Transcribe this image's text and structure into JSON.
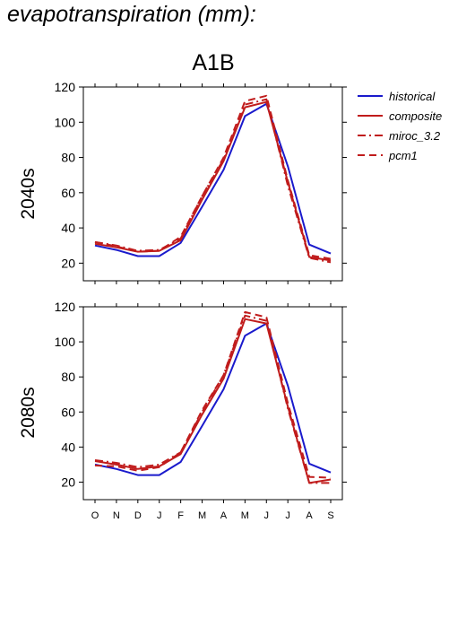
{
  "title": "evapotranspiration (mm):",
  "chart_data": {
    "type": "line",
    "scenario": "A1B",
    "x_tick_labels": [
      "O",
      "N",
      "D",
      "J",
      "F",
      "M",
      "A",
      "M",
      "J",
      "J",
      "A",
      "S"
    ],
    "y_ticks": [
      20,
      40,
      60,
      80,
      100,
      120
    ],
    "ylim": [
      10,
      120
    ],
    "legend_position": "right",
    "colors": {
      "historical": "#1a1acc",
      "scenarios": "#c01c1c"
    },
    "legend": [
      {
        "name": "historical",
        "style": "solid-blue"
      },
      {
        "name": "composite",
        "style": "solid-red"
      },
      {
        "name": "miroc_3.2",
        "style": "dash-dot-red"
      },
      {
        "name": "pcm1",
        "style": "dashed-red"
      }
    ],
    "panels": [
      {
        "label": "2040s",
        "series": [
          {
            "name": "historical",
            "values": [
              30,
              27.5,
              24,
              24,
              31.5,
              52,
              73,
              103.5,
              110.5,
              75,
              30.5,
              25.5
            ]
          },
          {
            "name": "composite",
            "values": [
              31,
              29,
              26.5,
              27,
              33,
              56,
              78,
              108.5,
              111.5,
              66,
              23.5,
              21.5
            ]
          },
          {
            "name": "miroc_3.2",
            "values": [
              32,
              30,
              27,
              27.5,
              34,
              58,
              79,
              110,
              113,
              64,
              23,
              20.5
            ]
          },
          {
            "name": "pcm1",
            "values": [
              32,
              29.5,
              26.5,
              27,
              35,
              58,
              80,
              112,
              115,
              67,
              24.5,
              22.5
            ]
          }
        ]
      },
      {
        "label": "2080s",
        "series": [
          {
            "name": "historical",
            "values": [
              30,
              27.5,
              24,
              24,
              31.5,
              52,
              73,
              103.5,
              110.5,
              75,
              30.5,
              25.5
            ]
          },
          {
            "name": "composite",
            "values": [
              32,
              30,
              27.5,
              29,
              36,
              58.5,
              79,
              113,
              110.5,
              63,
              19.5,
              21.5
            ]
          },
          {
            "name": "miroc_3.2",
            "values": [
              32.5,
              31,
              28.5,
              30,
              37,
              60,
              81,
              115,
              112,
              62,
              19.5,
              19.5
            ]
          },
          {
            "name": "pcm1",
            "values": [
              29.5,
              29,
              26.5,
              28.5,
              37,
              61,
              81,
              117,
              114,
              65,
              23,
              22.5
            ]
          }
        ]
      }
    ]
  }
}
